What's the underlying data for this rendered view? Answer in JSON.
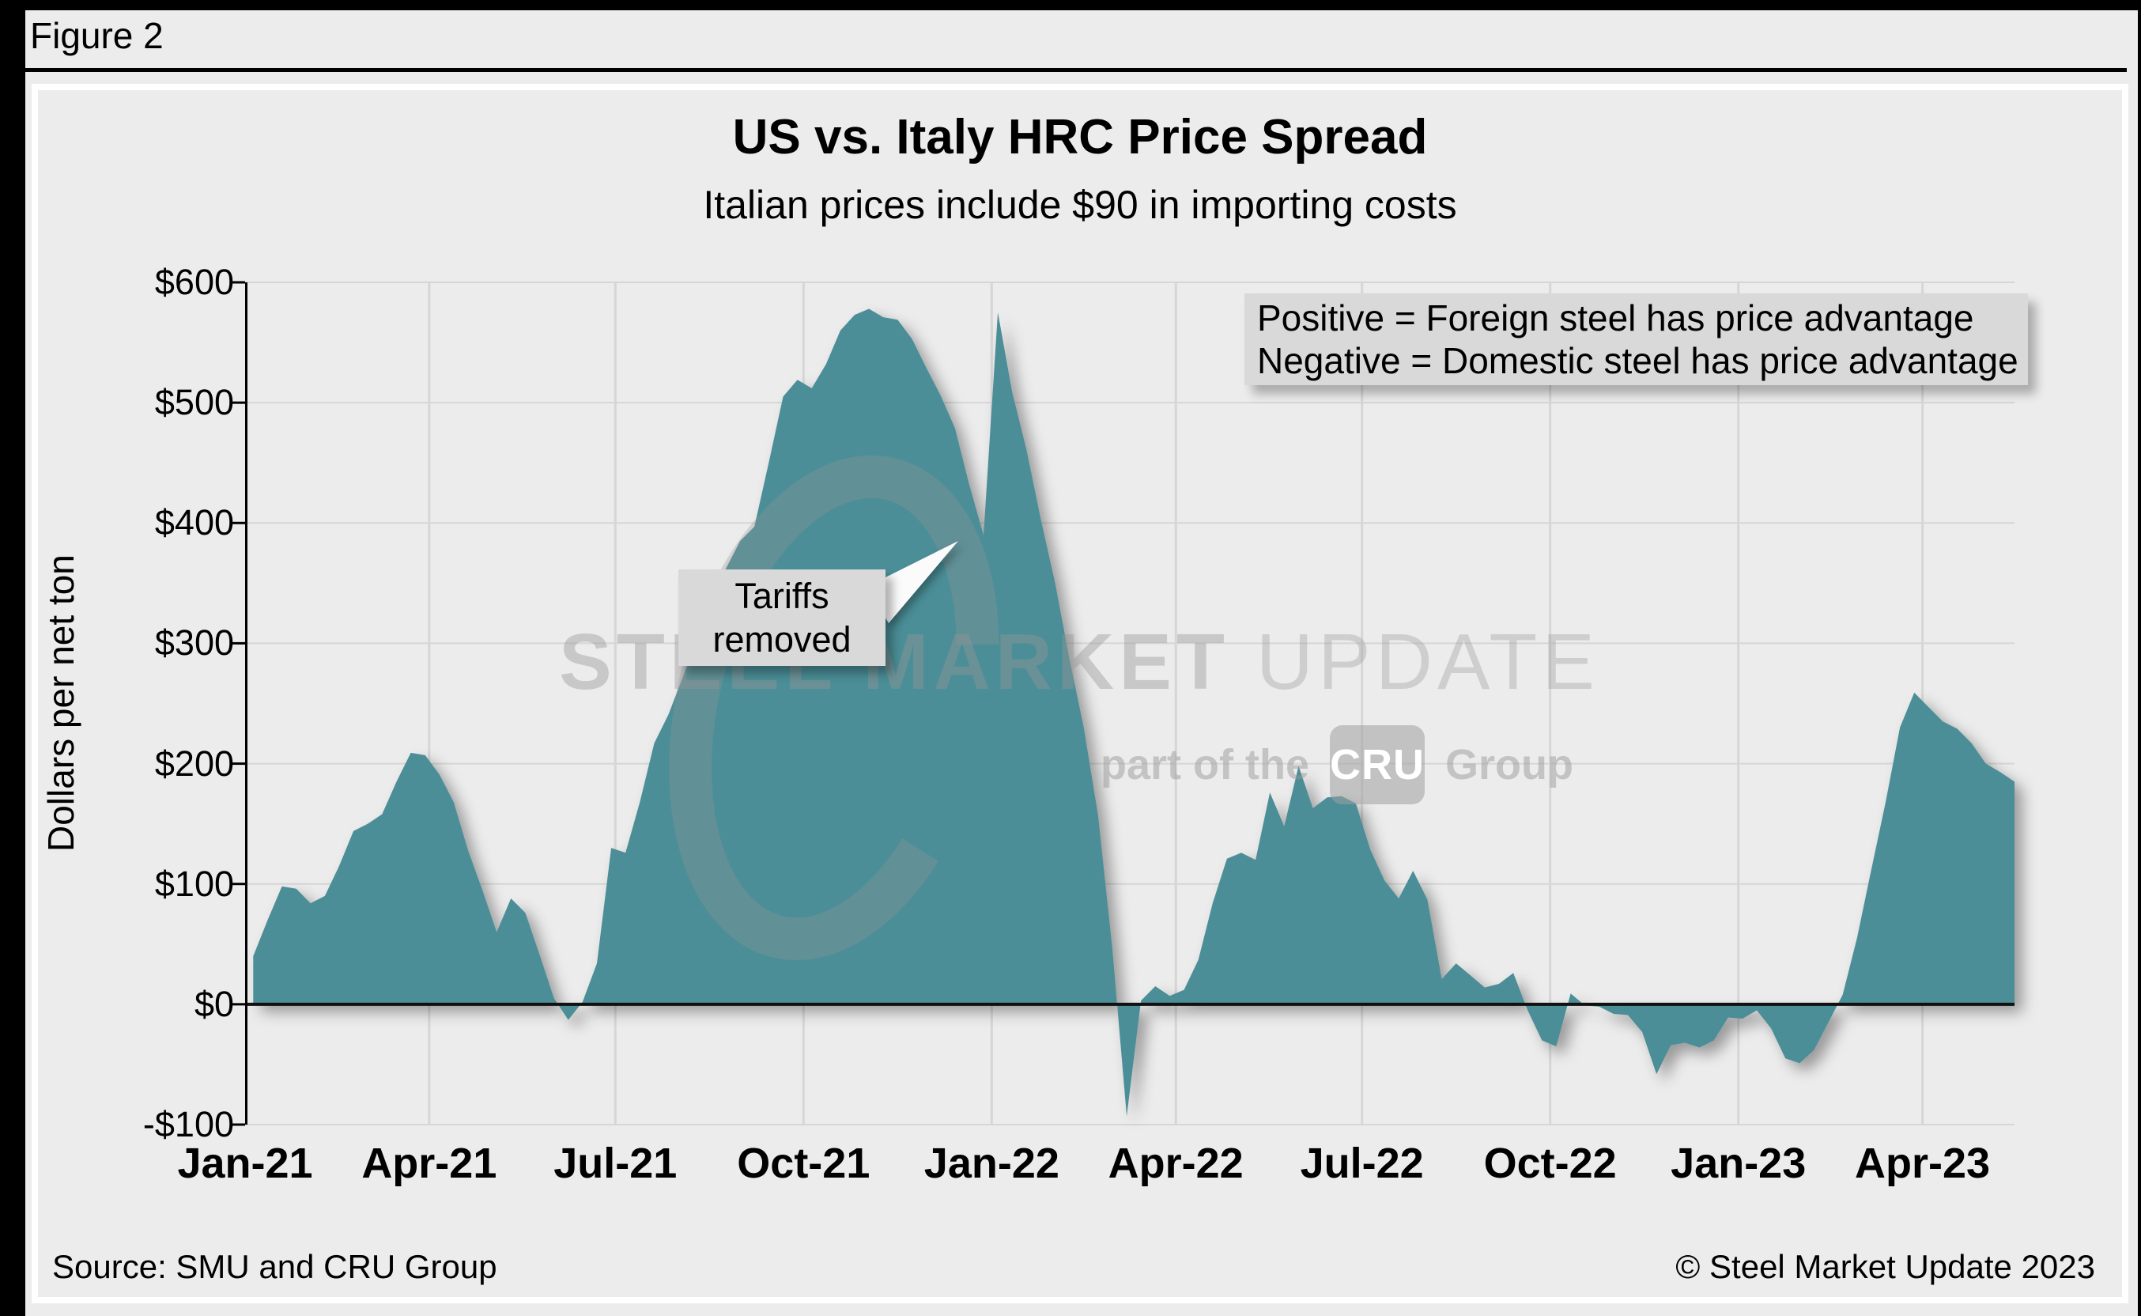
{
  "figure_label": "Figure 2",
  "header": {
    "title": "US vs. Italy HRC Price Spread",
    "subtitle": "Italian prices include $90 in importing costs"
  },
  "note_box": {
    "line1": "Positive = Foreign steel has price advantage",
    "line2": "Negative = Domestic steel has price advantage"
  },
  "annotation": {
    "line1": "Tariffs",
    "line2": "removed"
  },
  "watermark": {
    "title_bold": "STEEL MARKET ",
    "title_light": "UPDATE",
    "tagline_prefix": "part of the",
    "tagline_badge": "CRU",
    "tagline_suffix": "Group"
  },
  "footer": {
    "source": "Source: SMU and CRU Group",
    "copyright": "© Steel Market Update 2023"
  },
  "colors": {
    "area": "#4b8e97",
    "background": "#ececec",
    "gridline": "#d6d6d6",
    "box_bg": "#d9d9d9",
    "zero_line": "#111111",
    "axis": "#000000",
    "card_border": "#ffffff"
  },
  "chart_data": {
    "type": "area",
    "title": "US vs. Italy HRC Price Spread",
    "subtitle": "Italian prices include $90 in importing costs",
    "xlabel": "",
    "ylabel": "Dollars per net ton",
    "series_name": "US minus Italy HRC price spread (Italian price includes $90 importing costs)",
    "ylim": [
      -100,
      600
    ],
    "x_range": [
      "2021-01-01",
      "2023-05-16"
    ],
    "grid": true,
    "legend_position": "none",
    "yticks": [
      {
        "v": 600,
        "label": "$600"
      },
      {
        "v": 500,
        "label": "$500"
      },
      {
        "v": 400,
        "label": "$400"
      },
      {
        "v": 300,
        "label": "$300"
      },
      {
        "v": 200,
        "label": "$200"
      },
      {
        "v": 100,
        "label": "$100"
      },
      {
        "v": 0,
        "label": "$0"
      },
      {
        "v": -100,
        "label": "-$100"
      }
    ],
    "xticks": [
      {
        "date": "2021-01-01",
        "label": "Jan-21"
      },
      {
        "date": "2021-04-01",
        "label": "Apr-21"
      },
      {
        "date": "2021-07-01",
        "label": "Jul-21"
      },
      {
        "date": "2021-10-01",
        "label": "Oct-21"
      },
      {
        "date": "2022-01-01",
        "label": "Jan-22"
      },
      {
        "date": "2022-04-01",
        "label": "Apr-22"
      },
      {
        "date": "2022-07-01",
        "label": "Jul-22"
      },
      {
        "date": "2022-10-01",
        "label": "Oct-22"
      },
      {
        "date": "2023-01-01",
        "label": "Jan-23"
      },
      {
        "date": "2023-04-01",
        "label": "Apr-23"
      }
    ],
    "dates": [
      "2021-01-05",
      "2021-01-12",
      "2021-01-19",
      "2021-01-26",
      "2021-02-02",
      "2021-02-09",
      "2021-02-16",
      "2021-02-23",
      "2021-03-02",
      "2021-03-09",
      "2021-03-16",
      "2021-03-23",
      "2021-03-30",
      "2021-04-06",
      "2021-04-13",
      "2021-04-20",
      "2021-04-27",
      "2021-05-04",
      "2021-05-11",
      "2021-05-18",
      "2021-05-25",
      "2021-06-01",
      "2021-06-08",
      "2021-06-15",
      "2021-06-22",
      "2021-06-29",
      "2021-07-06",
      "2021-07-13",
      "2021-07-20",
      "2021-07-27",
      "2021-08-03",
      "2021-08-10",
      "2021-08-17",
      "2021-08-24",
      "2021-08-31",
      "2021-09-07",
      "2021-09-14",
      "2021-09-21",
      "2021-09-28",
      "2021-10-05",
      "2021-10-12",
      "2021-10-19",
      "2021-10-26",
      "2021-11-02",
      "2021-11-09",
      "2021-11-16",
      "2021-11-23",
      "2021-11-30",
      "2021-12-07",
      "2021-12-14",
      "2021-12-21",
      "2021-12-28",
      "2022-01-04",
      "2022-01-11",
      "2022-01-18",
      "2022-01-25",
      "2022-02-01",
      "2022-02-08",
      "2022-02-15",
      "2022-02-22",
      "2022-03-01",
      "2022-03-08",
      "2022-03-15",
      "2022-03-22",
      "2022-03-29",
      "2022-04-05",
      "2022-04-12",
      "2022-04-19",
      "2022-04-26",
      "2022-05-03",
      "2022-05-10",
      "2022-05-17",
      "2022-05-24",
      "2022-05-31",
      "2022-06-07",
      "2022-06-14",
      "2022-06-21",
      "2022-06-28",
      "2022-07-05",
      "2022-07-12",
      "2022-07-19",
      "2022-07-26",
      "2022-08-02",
      "2022-08-09",
      "2022-08-16",
      "2022-08-23",
      "2022-08-30",
      "2022-09-06",
      "2022-09-13",
      "2022-09-20",
      "2022-09-27",
      "2022-10-04",
      "2022-10-11",
      "2022-10-18",
      "2022-10-25",
      "2022-11-01",
      "2022-11-08",
      "2022-11-15",
      "2022-11-22",
      "2022-11-29",
      "2022-12-06",
      "2022-12-13",
      "2022-12-20",
      "2022-12-27",
      "2023-01-03",
      "2023-01-10",
      "2023-01-17",
      "2023-01-24",
      "2023-01-31",
      "2023-02-07",
      "2023-02-14",
      "2023-02-21",
      "2023-02-28",
      "2023-03-07",
      "2023-03-14",
      "2023-03-21",
      "2023-03-28",
      "2023-04-04",
      "2023-04-11",
      "2023-04-18",
      "2023-04-25",
      "2023-05-02",
      "2023-05-09",
      "2023-05-16"
    ],
    "values": [
      40,
      70,
      98,
      96,
      84,
      90,
      115,
      144,
      150,
      158,
      185,
      209,
      207,
      191,
      168,
      128,
      95,
      60,
      88,
      76,
      41,
      5,
      -13,
      2,
      34,
      130,
      126,
      168,
      217,
      241,
      272,
      305,
      335,
      362,
      385,
      397,
      450,
      505,
      519,
      512,
      532,
      560,
      573,
      578,
      571,
      569,
      553,
      529,
      506,
      479,
      432,
      390,
      575,
      509,
      461,
      403,
      350,
      287,
      230,
      157,
      46,
      -93,
      3,
      15,
      7,
      12,
      37,
      84,
      121,
      126,
      120,
      176,
      148,
      198,
      163,
      172,
      173,
      167,
      129,
      103,
      88,
      111,
      87,
      21,
      34,
      24,
      14,
      17,
      26,
      -5,
      -30,
      -35,
      9,
      -1,
      -2,
      -8,
      -9,
      -23,
      -58,
      -34,
      -32,
      -36,
      -30,
      -11,
      -12,
      -5,
      -20,
      -45,
      -49,
      -38,
      -15,
      8,
      55,
      112,
      168,
      230,
      259,
      247,
      235,
      229,
      217,
      200,
      193,
      185
    ],
    "annotation_target": {
      "date": "2021-12-24",
      "value": 400
    }
  }
}
